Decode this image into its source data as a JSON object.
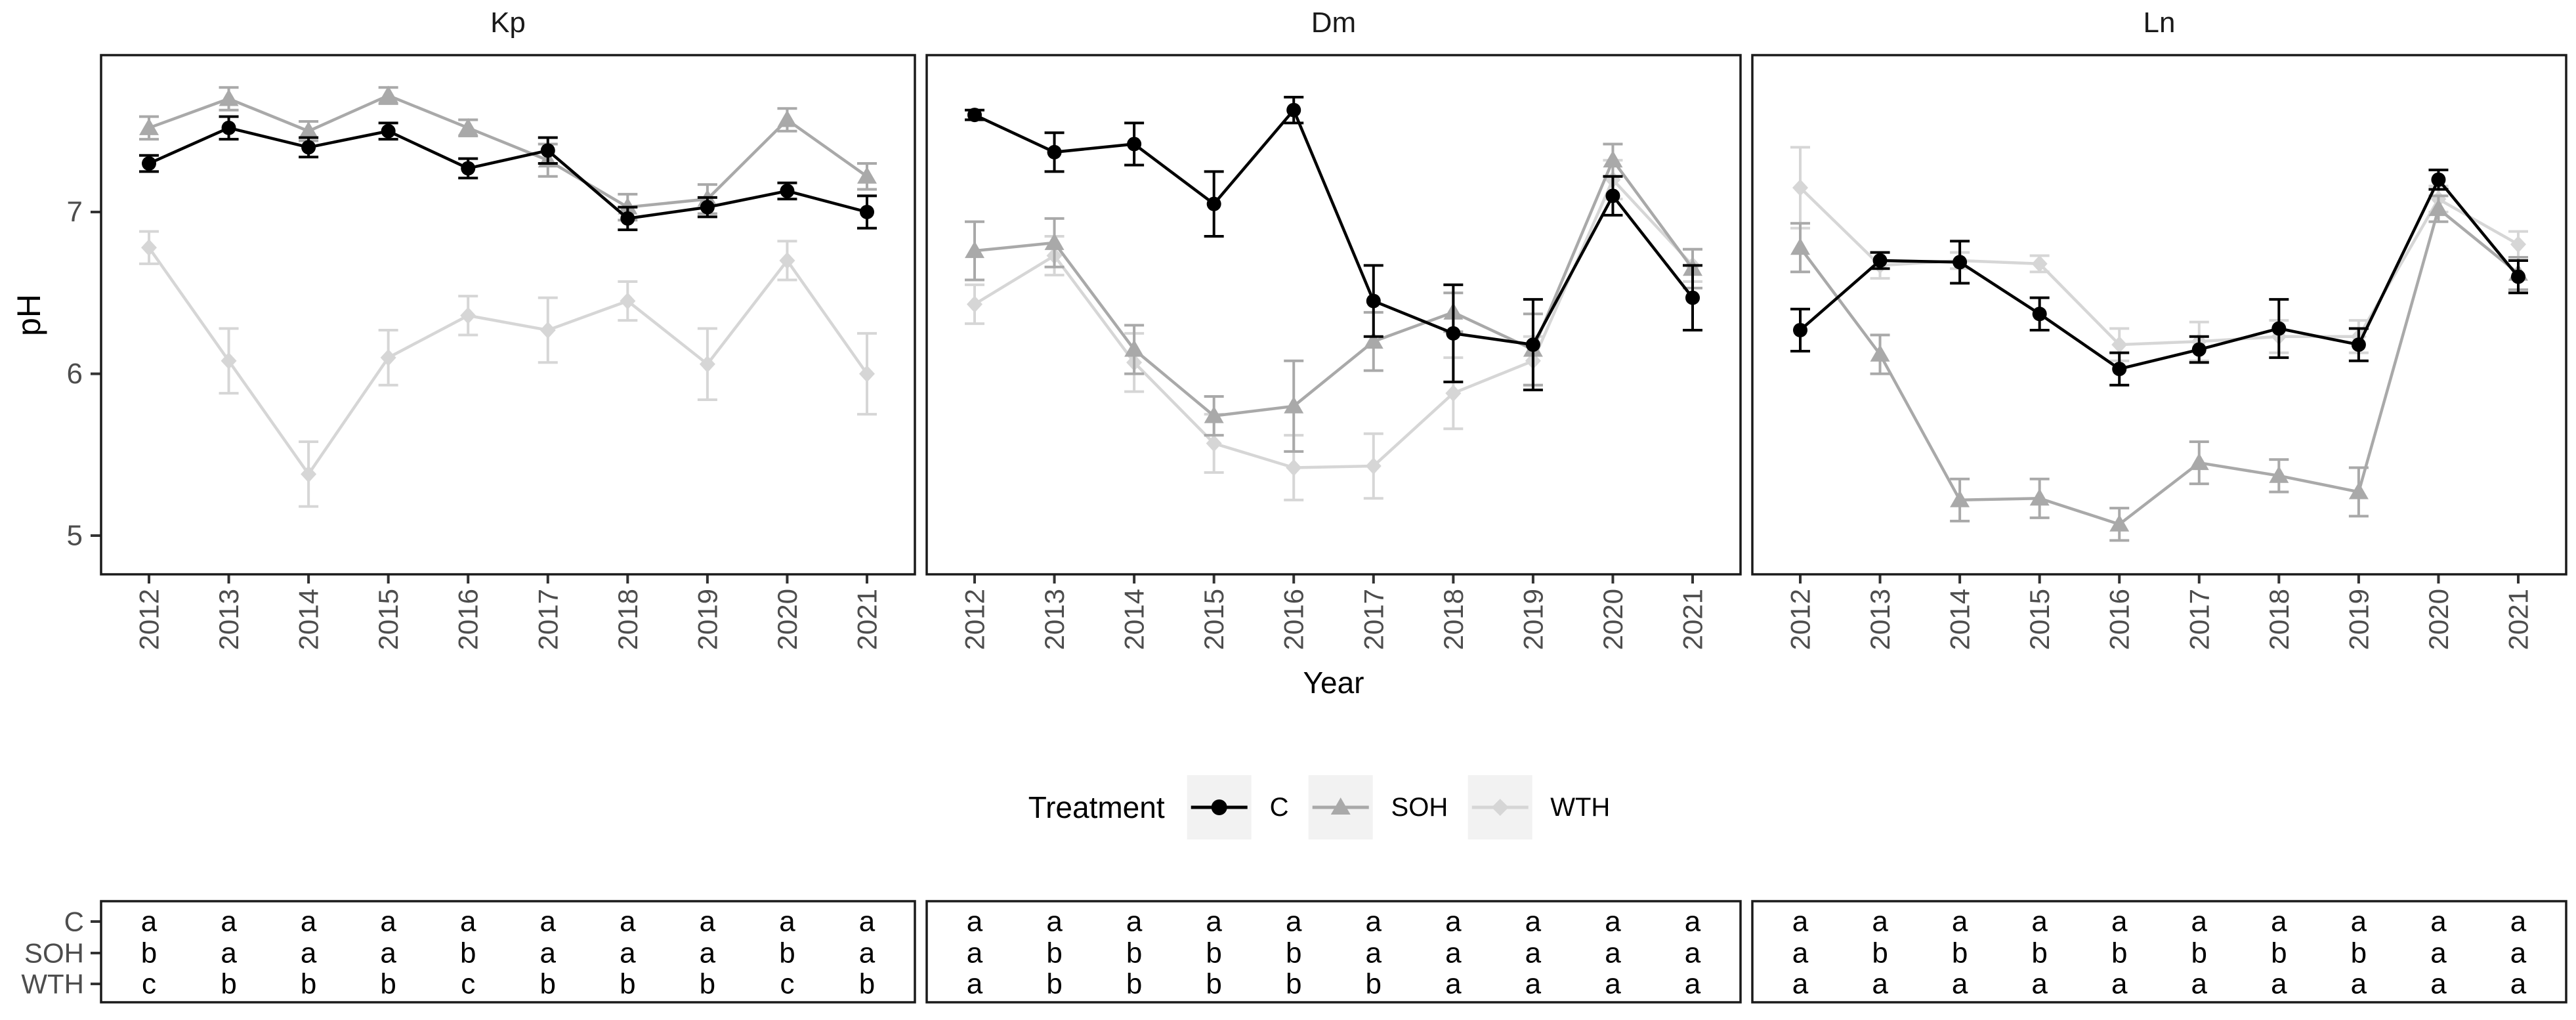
{
  "figure": {
    "y_axis": {
      "label": "pH",
      "ticks": [
        "7",
        "6",
        "5"
      ],
      "tick_values": [
        7,
        6,
        5
      ]
    },
    "x_axis": {
      "label": "Year",
      "categories": [
        "2012",
        "2013",
        "2014",
        "2015",
        "2016",
        "2017",
        "2018",
        "2019",
        "2020",
        "2021"
      ]
    },
    "legend": {
      "title": "Treatment",
      "key_background": "#f2f2f2",
      "items": [
        {
          "label": "C",
          "marker": "circle",
          "color": "#000000"
        },
        {
          "label": "SOH",
          "marker": "triangle",
          "color": "#a9a9a9"
        },
        {
          "label": "WTH",
          "marker": "diamond",
          "color": "#d6d6d6"
        }
      ]
    },
    "colors": {
      "axis_text": "#4d4d4d",
      "panel_border": "#1a1a1a",
      "tick_mark": "#333333",
      "table_letter": "#000000"
    }
  },
  "chart_data": [
    {
      "type": "line",
      "title": "Kp",
      "xlabel": "Year",
      "ylabel": "pH",
      "x": [
        2012,
        2013,
        2014,
        2015,
        2016,
        2017,
        2018,
        2019,
        2020,
        2021
      ],
      "ylim": [
        4.8,
        8.0
      ],
      "yticks": [
        5,
        6,
        7
      ],
      "grid": false,
      "series": [
        {
          "name": "C",
          "marker": "circle",
          "color": "#000000",
          "values": [
            7.3,
            7.52,
            7.4,
            7.5,
            7.27,
            7.38,
            6.96,
            7.03,
            7.13,
            7.0
          ],
          "errors": [
            0.05,
            0.07,
            0.06,
            0.05,
            0.06,
            0.08,
            0.07,
            0.06,
            0.05,
            0.1
          ]
        },
        {
          "name": "SOH",
          "marker": "triangle",
          "color": "#a9a9a9",
          "values": [
            7.52,
            7.7,
            7.5,
            7.72,
            7.52,
            7.32,
            7.03,
            7.08,
            7.57,
            7.22
          ],
          "errors": [
            0.07,
            0.07,
            0.06,
            0.05,
            0.05,
            0.1,
            0.08,
            0.09,
            0.07,
            0.08
          ]
        },
        {
          "name": "WTH",
          "marker": "diamond",
          "color": "#d6d6d6",
          "values": [
            6.78,
            6.08,
            5.38,
            6.1,
            6.36,
            6.27,
            6.45,
            6.06,
            6.7,
            6.0
          ],
          "errors": [
            0.1,
            0.2,
            0.2,
            0.17,
            0.12,
            0.2,
            0.12,
            0.22,
            0.12,
            0.25
          ]
        }
      ]
    },
    {
      "type": "line",
      "title": "Dm",
      "xlabel": "Year",
      "ylabel": "pH",
      "x": [
        2012,
        2013,
        2014,
        2015,
        2016,
        2017,
        2018,
        2019,
        2020,
        2021
      ],
      "ylim": [
        4.8,
        8.0
      ],
      "yticks": [
        5,
        6,
        7
      ],
      "grid": false,
      "series": [
        {
          "name": "C",
          "marker": "circle",
          "color": "#000000",
          "values": [
            7.6,
            7.37,
            7.42,
            7.05,
            7.63,
            6.45,
            6.25,
            6.18,
            7.1,
            6.47
          ],
          "errors": [
            0.03,
            0.12,
            0.13,
            0.2,
            0.08,
            0.22,
            0.3,
            0.28,
            0.12,
            0.2
          ]
        },
        {
          "name": "SOH",
          "marker": "triangle",
          "color": "#a9a9a9",
          "values": [
            6.76,
            6.81,
            6.15,
            5.74,
            5.8,
            6.2,
            6.38,
            6.15,
            7.32,
            6.65
          ],
          "errors": [
            0.18,
            0.15,
            0.15,
            0.12,
            0.28,
            0.18,
            0.12,
            0.22,
            0.1,
            0.12
          ]
        },
        {
          "name": "WTH",
          "marker": "diamond",
          "color": "#d6d6d6",
          "values": [
            6.43,
            6.73,
            6.07,
            5.57,
            5.42,
            5.43,
            5.88,
            6.08,
            7.2,
            6.67
          ],
          "errors": [
            0.12,
            0.12,
            0.18,
            0.18,
            0.2,
            0.2,
            0.22,
            0.15,
            0.12,
            0.1
          ]
        }
      ]
    },
    {
      "type": "line",
      "title": "Ln",
      "xlabel": "Year",
      "ylabel": "pH",
      "x": [
        2012,
        2013,
        2014,
        2015,
        2016,
        2017,
        2018,
        2019,
        2020,
        2021
      ],
      "ylim": [
        4.8,
        8.0
      ],
      "yticks": [
        5,
        6,
        7
      ],
      "grid": false,
      "series": [
        {
          "name": "C",
          "marker": "circle",
          "color": "#000000",
          "values": [
            6.27,
            6.7,
            6.69,
            6.37,
            6.03,
            6.15,
            6.28,
            6.18,
            7.2,
            6.6
          ],
          "errors": [
            0.13,
            0.05,
            0.13,
            0.1,
            0.1,
            0.08,
            0.18,
            0.1,
            0.06,
            0.1
          ]
        },
        {
          "name": "SOH",
          "marker": "triangle",
          "color": "#a9a9a9",
          "values": [
            6.78,
            6.12,
            5.22,
            5.23,
            5.07,
            5.45,
            5.37,
            5.27,
            7.02,
            6.62
          ],
          "errors": [
            0.15,
            0.12,
            0.13,
            0.12,
            0.1,
            0.13,
            0.1,
            0.15,
            0.08,
            0.1
          ]
        },
        {
          "name": "WTH",
          "marker": "diamond",
          "color": "#d6d6d6",
          "values": [
            7.15,
            6.67,
            6.7,
            6.68,
            6.18,
            6.2,
            6.23,
            6.23,
            7.08,
            6.8
          ],
          "errors": [
            0.25,
            0.08,
            0.05,
            0.05,
            0.1,
            0.12,
            0.1,
            0.1,
            0.08,
            0.08
          ]
        }
      ]
    }
  ],
  "tables": {
    "row_labels": [
      "C",
      "SOH",
      "WTH"
    ],
    "panels": [
      {
        "title": "Kp",
        "rows": [
          [
            "a",
            "a",
            "a",
            "a",
            "a",
            "a",
            "a",
            "a",
            "a",
            "a"
          ],
          [
            "b",
            "a",
            "a",
            "a",
            "b",
            "a",
            "a",
            "a",
            "b",
            "a"
          ],
          [
            "c",
            "b",
            "b",
            "b",
            "c",
            "b",
            "b",
            "b",
            "c",
            "b"
          ]
        ]
      },
      {
        "title": "Dm",
        "rows": [
          [
            "a",
            "a",
            "a",
            "a",
            "a",
            "a",
            "a",
            "a",
            "a",
            "a"
          ],
          [
            "a",
            "b",
            "b",
            "b",
            "b",
            "a",
            "a",
            "a",
            "a",
            "a"
          ],
          [
            "a",
            "b",
            "b",
            "b",
            "b",
            "b",
            "a",
            "a",
            "a",
            "a"
          ]
        ]
      },
      {
        "title": "Ln",
        "rows": [
          [
            "a",
            "a",
            "a",
            "a",
            "a",
            "a",
            "a",
            "a",
            "a",
            "a"
          ],
          [
            "a",
            "b",
            "b",
            "b",
            "b",
            "b",
            "b",
            "b",
            "a",
            "a"
          ],
          [
            "a",
            "a",
            "a",
            "a",
            "a",
            "a",
            "a",
            "a",
            "a",
            "a"
          ]
        ]
      }
    ]
  }
}
